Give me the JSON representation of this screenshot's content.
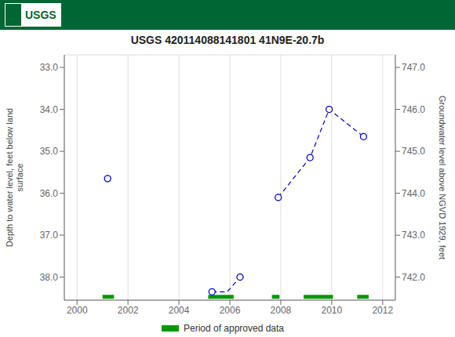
{
  "chart_data": {
    "type": "line",
    "title": "USGS 420114088141801 41N9E-20.7b",
    "annotations": [
      {
        "text": "USGS",
        "color": "#006633"
      }
    ],
    "ylabel": "Depth to water level, feet below land\nsurface",
    "y2label": "Groundwater level above NGVD 1929, feet",
    "xlim": [
      1999.5,
      2012.5
    ],
    "xticks": [
      2000,
      2002,
      2004,
      2006,
      2008,
      2010,
      2012
    ],
    "ylim": [
      38.55,
      32.7
    ],
    "yticks": [
      {
        "value": 33.0,
        "label": "33.0"
      },
      {
        "value": 34.0,
        "label": "34.0"
      },
      {
        "value": 35.0,
        "label": "35.0"
      },
      {
        "value": 36.0,
        "label": "36.0"
      },
      {
        "value": 37.0,
        "label": "37.0"
      },
      {
        "value": 38.0,
        "label": "38.0"
      }
    ],
    "y2lim": [
      741.45,
      747.3
    ],
    "y2ticks": [
      {
        "value": 747.0,
        "label": "747.0"
      },
      {
        "value": 746.0,
        "label": "746.0"
      },
      {
        "value": 745.0,
        "label": "745.0"
      },
      {
        "value": 744.0,
        "label": "744.0"
      },
      {
        "value": 743.0,
        "label": "743.0"
      },
      {
        "value": 742.0,
        "label": "742.0"
      }
    ],
    "grid": true,
    "legend": "bottom",
    "series": [
      {
        "type": "line",
        "color": "#0000CC",
        "line_style": "dashed",
        "x": [
          2005.3,
          2005.9,
          2006.4
        ],
        "values": [
          38.35,
          38.35,
          38.0
        ]
      },
      {
        "type": "line",
        "color": "#0000CC",
        "line_style": "dashed",
        "x": [
          2007.9,
          2009.15,
          2009.9,
          2011.25
        ],
        "values": [
          36.1,
          35.15,
          34.0,
          34.65
        ]
      },
      {
        "type": "scatter",
        "marker": "circle",
        "color": "#0000CC",
        "x": [
          2001.2,
          2005.3,
          2006.4,
          2007.9,
          2009.15,
          2009.9,
          2011.25
        ],
        "values": [
          35.65,
          38.35,
          38.0,
          36.1,
          35.15,
          34.0,
          34.65
        ]
      },
      {
        "type": "bar",
        "orientation": "horizontal",
        "name": "Period of approved data",
        "color": "#009900",
        "y": 38.47,
        "periods": [
          [
            2001.0,
            2001.45
          ],
          [
            2005.15,
            2006.15
          ],
          [
            2007.65,
            2007.95
          ],
          [
            2008.9,
            2010.05
          ],
          [
            2011.0,
            2011.45
          ]
        ]
      }
    ]
  }
}
